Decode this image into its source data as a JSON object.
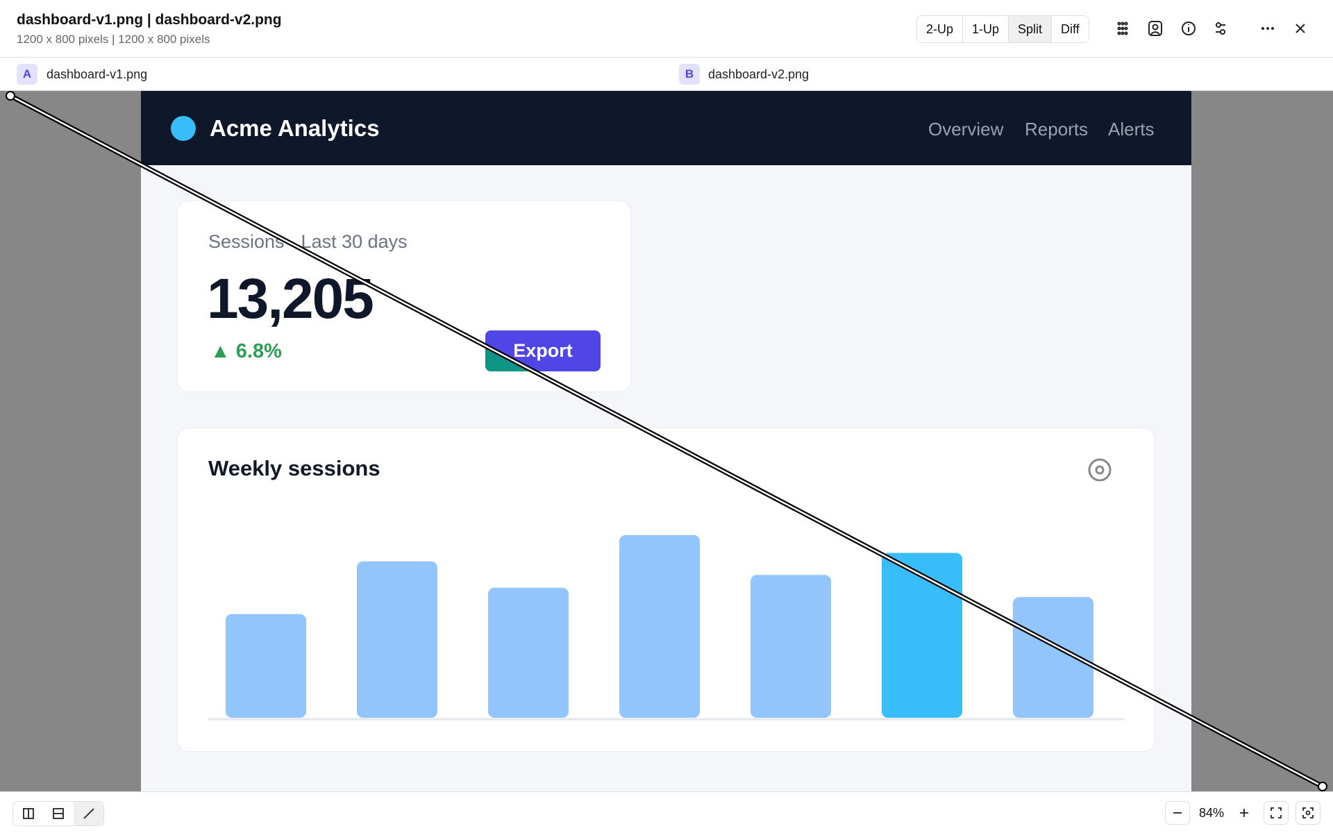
{
  "header": {
    "title": "dashboard-v1.png | dashboard-v2.png",
    "subtitle": "1200 x 800 pixels | 1200 x 800 pixels",
    "view_modes": [
      "2-Up",
      "1-Up",
      "Split",
      "Diff"
    ],
    "active_mode": 2
  },
  "tabs": [
    {
      "badge": "A",
      "label": "dashboard-v1.png"
    },
    {
      "badge": "B",
      "label": "dashboard-v2.png"
    }
  ],
  "dashboard": {
    "brand": "Acme Analytics",
    "nav": [
      "Overview",
      "Reports",
      "Alerts"
    ],
    "stat_card": {
      "title": "Sessions · Last 30 days",
      "value": "13,205",
      "change": "▲ 6.8%",
      "button": "Export"
    },
    "chart": {
      "type": "bar",
      "title": "Weekly sessions",
      "values": [
        122,
        184,
        153,
        215,
        168,
        194,
        142
      ],
      "colors": [
        "#93c5fd",
        "#93c5fd",
        "#93c5fd",
        "#93c5fd",
        "#93c5fd",
        "#38bdf8",
        "#93c5fd"
      ]
    }
  },
  "footer": {
    "zoom": "84%"
  }
}
